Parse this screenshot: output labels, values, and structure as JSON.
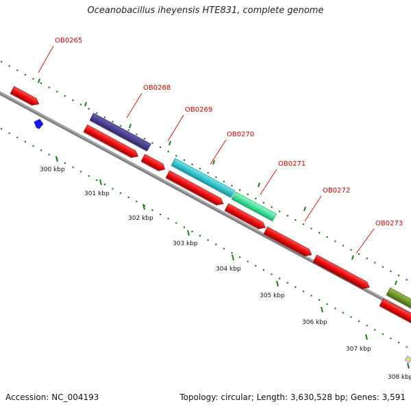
{
  "title": "Oceanobacillus iheyensis HTE831, complete genome",
  "footer": {
    "accession": "Accession: NC_004193",
    "summary": "Topology: circular; Length: 3,630,528 bp; Genes: 3,591"
  },
  "colors": {
    "background": "#ffffff",
    "backbone": "#808080",
    "tick": "#1a7a1a",
    "gene_red": "#ee1111",
    "gene_purple": "#4a3f8f",
    "gene_cyan": "#22c6d0",
    "gene_mint": "#2ef29a",
    "gene_olive": "#6f9a2a",
    "label_red": "#cc0000",
    "small_marker": "#1a1aee"
  },
  "scale_labels": [
    "300 kbp",
    "301 kbp",
    "302 kbp",
    "303 kbp",
    "304 kbp",
    "305 kbp",
    "306 kbp",
    "307 kbp",
    "308 kbp"
  ],
  "gene_labels": [
    "OB0265",
    "OB0268",
    "OB0269",
    "OB0270",
    "OB0271",
    "OB0272",
    "OB0273"
  ],
  "legend_icons": [
    "gene-arrow-icon"
  ]
}
